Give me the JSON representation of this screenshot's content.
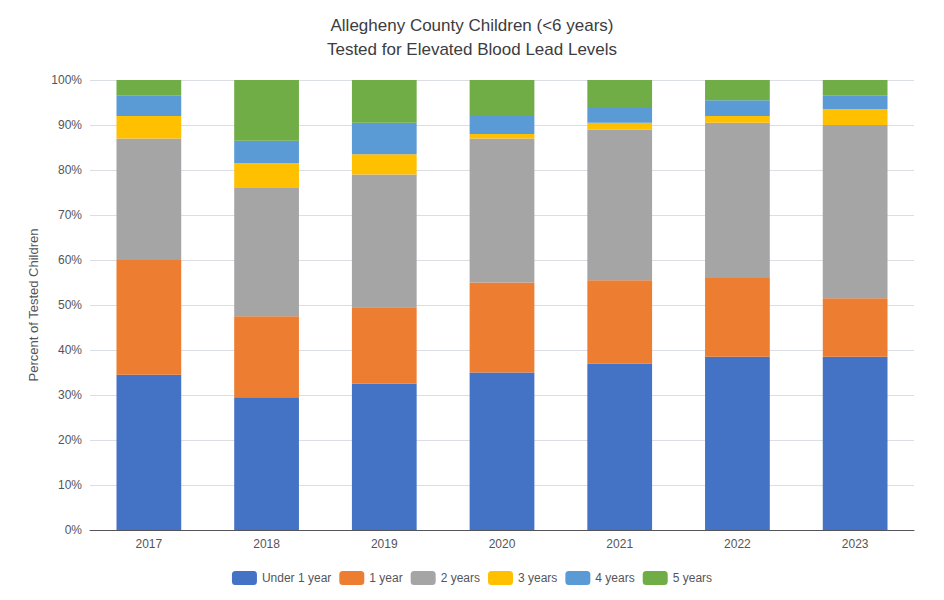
{
  "chart_data": {
    "type": "bar",
    "title": "Allegheny County Children (<6 years)\nTested for Elevated Blood Lead Levels",
    "ylabel": "Percent of Tested Children",
    "categories": [
      "2017",
      "2018",
      "2019",
      "2020",
      "2021",
      "2022",
      "2023"
    ],
    "series": [
      {
        "name": "Under 1 year",
        "color": "#4472C4",
        "values": [
          34.5,
          29.5,
          32.5,
          35.0,
          37.0,
          38.5,
          38.5
        ]
      },
      {
        "name": "1 year",
        "color": "#ED7D31",
        "values": [
          25.5,
          18.0,
          17.0,
          20.0,
          18.5,
          17.5,
          13.0
        ]
      },
      {
        "name": "2 years",
        "color": "#A5A5A5",
        "values": [
          27.0,
          28.5,
          29.5,
          32.0,
          33.5,
          34.5,
          38.5
        ]
      },
      {
        "name": "3 years",
        "color": "#FFC000",
        "values": [
          5.0,
          5.5,
          4.5,
          1.0,
          1.5,
          1.5,
          3.5
        ]
      },
      {
        "name": "4 years",
        "color": "#5B9BD5",
        "values": [
          4.5,
          5.0,
          7.0,
          4.0,
          3.5,
          3.5,
          3.0
        ]
      },
      {
        "name": "5 years",
        "color": "#70AD47",
        "values": [
          3.5,
          13.5,
          9.5,
          8.0,
          6.0,
          4.5,
          3.5
        ]
      }
    ],
    "stacked": true,
    "ylim": [
      0,
      100
    ],
    "yticks": [
      {
        "value": 0,
        "label": "0%"
      },
      {
        "value": 10,
        "label": "10%"
      },
      {
        "value": 20,
        "label": "20%"
      },
      {
        "value": 30,
        "label": "30%"
      },
      {
        "value": 40,
        "label": "40%"
      },
      {
        "value": 50,
        "label": "50%"
      },
      {
        "value": 60,
        "label": "60%"
      },
      {
        "value": 70,
        "label": "70%"
      },
      {
        "value": 80,
        "label": "80%"
      },
      {
        "value": 90,
        "label": "90%"
      },
      {
        "value": 100,
        "label": "100%"
      }
    ],
    "grid": true,
    "legend": "bottom"
  }
}
